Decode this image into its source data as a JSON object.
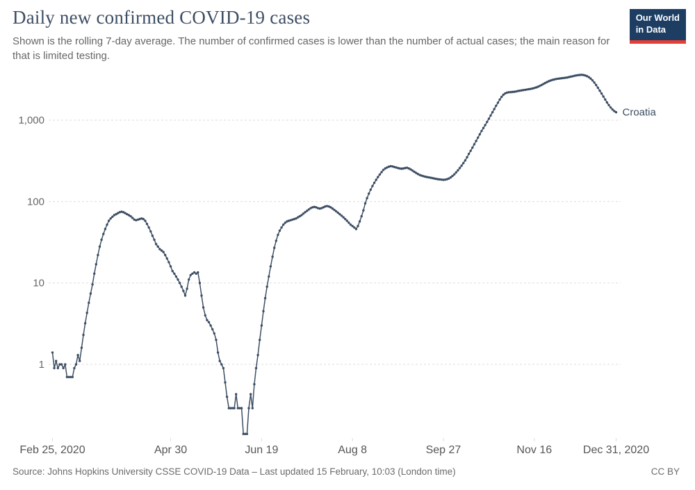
{
  "header": {
    "title": "Daily new confirmed COVID-19 cases",
    "subtitle": "Shown is the rolling 7-day average. The number of confirmed cases is lower than the number of actual cases; the main reason for that is limited testing.",
    "logo": {
      "line1": "Our World",
      "line2": "in Data",
      "bg": "#1d3d63",
      "stripe": "#e63e36"
    }
  },
  "footer": {
    "source": "Source: Johns Hopkins University CSSE COVID-19 Data – Last updated 15 February, 10:03 (London time)",
    "license": "CC BY"
  },
  "chart_data": {
    "type": "line",
    "scale": "log",
    "title": "Daily new confirmed COVID-19 cases",
    "entity": "Croatia",
    "line_color": "#3d4e63",
    "grid_color": "#dddddd",
    "start_date": "2020-02-25",
    "end_date": "2020-12-31",
    "x_tick_labels": [
      "Feb 25, 2020",
      "Apr 30",
      "Jun 19",
      "Aug 8",
      "Sep 27",
      "Nov 16",
      "Dec 31, 2020"
    ],
    "x_tick_days": [
      0,
      65,
      115,
      165,
      215,
      265,
      310
    ],
    "y_ticks": [
      1,
      10,
      100,
      1000
    ],
    "y_tick_labels": [
      "1",
      "10",
      "100",
      "1,000"
    ],
    "ylim": [
      0.1,
      4000
    ],
    "xlabel": "",
    "ylabel": "",
    "values": [
      1.4,
      0.9,
      1.1,
      0.9,
      1.0,
      1.0,
      0.9,
      1.0,
      0.7,
      0.7,
      0.7,
      0.7,
      0.9,
      1.0,
      1.3,
      1.1,
      1.6,
      2.3,
      3.2,
      4.3,
      5.7,
      7.4,
      9.6,
      13,
      17,
      22,
      28,
      34,
      40,
      46,
      52,
      58,
      62,
      65,
      68,
      70,
      72,
      74,
      75,
      74,
      72,
      70,
      68,
      66,
      63,
      60,
      59,
      60,
      61,
      62,
      61,
      58,
      53,
      48,
      43,
      38,
      34,
      30,
      28,
      26,
      25,
      24,
      22,
      20,
      18,
      16,
      14,
      13,
      12,
      11,
      10,
      9,
      8,
      7,
      8.5,
      11,
      12.5,
      13,
      13.5,
      13,
      13.5,
      10,
      7,
      5,
      4,
      3.5,
      3.3,
      3.0,
      2.7,
      2.4,
      2.0,
      1.4,
      1.1,
      1.0,
      0.9,
      0.6,
      0.4,
      0.29,
      0.29,
      0.29,
      0.29,
      0.43,
      0.29,
      0.29,
      0.29,
      0.14,
      0.14,
      0.14,
      0.29,
      0.43,
      0.29,
      0.57,
      0.9,
      1.3,
      2.0,
      3.0,
      4.5,
      6.5,
      9,
      12,
      16,
      21,
      27,
      33,
      39,
      44,
      48,
      52,
      55,
      57,
      58,
      59,
      60,
      61,
      62,
      64,
      66,
      68,
      71,
      74,
      77,
      80,
      83,
      85,
      86,
      85,
      83,
      82,
      83,
      85,
      87,
      88,
      87,
      85,
      82,
      79,
      76,
      73,
      70,
      67,
      64,
      61,
      58,
      55,
      52,
      50,
      48,
      46,
      50,
      57,
      66,
      78,
      95,
      110,
      125,
      140,
      155,
      170,
      185,
      200,
      215,
      230,
      245,
      255,
      262,
      268,
      272,
      270,
      266,
      262,
      258,
      255,
      253,
      255,
      258,
      260,
      255,
      248,
      240,
      232,
      225,
      218,
      212,
      208,
      205,
      202,
      200,
      198,
      196,
      194,
      192,
      190,
      188,
      187,
      186,
      185,
      186,
      188,
      192,
      198,
      206,
      216,
      228,
      242,
      258,
      276,
      296,
      320,
      350,
      385,
      420,
      460,
      505,
      555,
      610,
      670,
      735,
      800,
      870,
      950,
      1040,
      1140,
      1250,
      1370,
      1500,
      1640,
      1790,
      1930,
      2050,
      2130,
      2180,
      2200,
      2210,
      2220,
      2230,
      2250,
      2280,
      2300,
      2320,
      2340,
      2360,
      2380,
      2400,
      2420,
      2450,
      2480,
      2520,
      2570,
      2630,
      2700,
      2780,
      2860,
      2940,
      3010,
      3070,
      3120,
      3160,
      3200,
      3230,
      3250,
      3270,
      3290,
      3310,
      3340,
      3380,
      3420,
      3460,
      3500,
      3540,
      3570,
      3590,
      3600,
      3580,
      3540,
      3470,
      3370,
      3240,
      3080,
      2900,
      2700,
      2500,
      2300,
      2120,
      1950,
      1790,
      1650,
      1530,
      1430,
      1350,
      1290,
      1250
    ]
  }
}
